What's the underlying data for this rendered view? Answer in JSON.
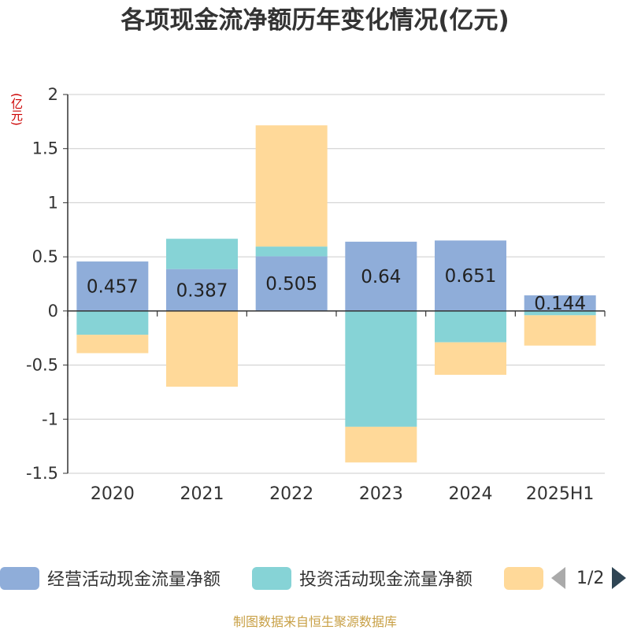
{
  "title": "各项现金流净额历年变化情况(亿元)",
  "unit_label": "(亿元)",
  "source": "制图数据来自恒生聚源数据库",
  "legend": {
    "items": [
      {
        "label": "经营活动现金流量净额",
        "color": "#8fadd9"
      },
      {
        "label": "投资活动现金流量净额",
        "color": "#86d3d6"
      },
      {
        "label": "",
        "color": "#ffd999"
      }
    ],
    "page": "1/2"
  },
  "chart_data": {
    "type": "bar",
    "stacked": true,
    "categories": [
      "2020",
      "2021",
      "2022",
      "2023",
      "2024",
      "2025H1"
    ],
    "ylim": [
      -1.5,
      2
    ],
    "yticks": [
      2,
      1.5,
      1,
      0.5,
      0,
      -0.5,
      -1,
      -1.5
    ],
    "ytick_labels": [
      "2",
      "1.5",
      "1",
      "0.5",
      "0",
      "-0.5",
      "-1",
      "-1.5"
    ],
    "grid": true,
    "series": [
      {
        "name": "经营活动现金流量净额",
        "color": "#8fadd9",
        "values": [
          0.457,
          0.387,
          0.505,
          0.64,
          0.651,
          0.144
        ],
        "show_labels": true
      },
      {
        "name": "投资活动现金流量净额",
        "color": "#86d3d6",
        "values": [
          -0.22,
          0.28,
          0.09,
          -1.07,
          -0.29,
          -0.04
        ],
        "show_labels": false
      },
      {
        "name": "",
        "color": "#ffd999",
        "values": [
          -0.17,
          -0.7,
          1.12,
          -0.33,
          -0.3,
          -0.28
        ],
        "show_labels": false
      }
    ]
  }
}
